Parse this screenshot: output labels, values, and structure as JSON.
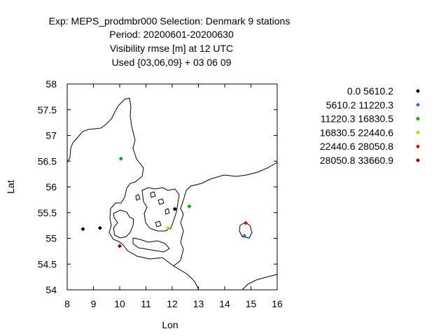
{
  "title": {
    "line1": "Exp: MEPS_prodmbr000   Selection: Denmark      9 stations",
    "line2": "Period: 20200601-20200630",
    "line3": "Visibility rmse [m] at  12 UTC",
    "line4": "Used {03,06,09} + 03 06 09"
  },
  "chart_data": {
    "type": "scatter",
    "xlabel": "Lon",
    "ylabel": "Lat",
    "xlim": [
      8,
      16
    ],
    "ylim": [
      54,
      58
    ],
    "xticks": [
      "8",
      "9",
      "10",
      "11",
      "12",
      "13",
      "14",
      "15",
      "16"
    ],
    "yticks": [
      "54",
      "54.5",
      "55",
      "55.5",
      "56",
      "56.5",
      "57",
      "57.5",
      "58"
    ],
    "grid": false,
    "legend_position": "right",
    "legend": [
      {
        "label": "0.0 5610.2",
        "color": "#000000"
      },
      {
        "label": "5610.2 11220.3",
        "color": "#3366dd"
      },
      {
        "label": "11220.3 16830.5",
        "color": "#00aa00"
      },
      {
        "label": "16830.5 22440.6",
        "color": "#cccc00"
      },
      {
        "label": "22440.6 28050.8",
        "color": "#ee0000"
      },
      {
        "label": "28050.8 33660.9",
        "color": "#880000"
      }
    ],
    "points": [
      {
        "lon": 8.6,
        "lat": 55.18,
        "class": 0
      },
      {
        "lon": 9.25,
        "lat": 55.2,
        "class": 0
      },
      {
        "lon": 12.1,
        "lat": 55.57,
        "class": 0
      },
      {
        "lon": 14.75,
        "lat": 55.05,
        "class": 1
      },
      {
        "lon": 10.05,
        "lat": 56.55,
        "class": 2
      },
      {
        "lon": 12.65,
        "lat": 55.62,
        "class": 2
      },
      {
        "lon": 11.85,
        "lat": 55.2,
        "class": 3
      },
      {
        "lon": 14.8,
        "lat": 55.3,
        "class": 4
      },
      {
        "lon": 10.0,
        "lat": 54.85,
        "class": 5
      }
    ]
  }
}
